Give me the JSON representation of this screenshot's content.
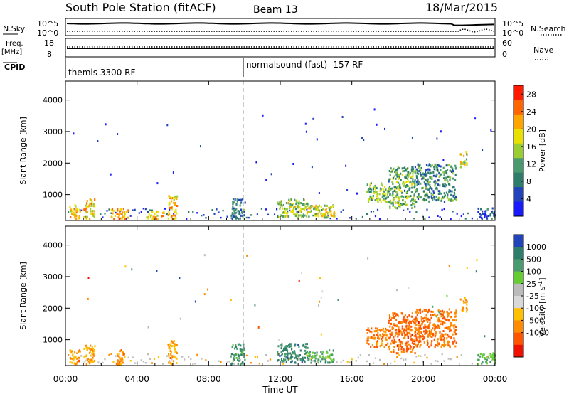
{
  "header": {
    "title": "South Pole Station (fitACF)",
    "beam": "Beam 13",
    "date": "18/Mar/2015"
  },
  "top_strips": {
    "nsky": {
      "label": "N.Sky",
      "ticks": [
        "10^5",
        "10^0"
      ],
      "right_label": "N.Search",
      "right_ticks": [
        "10^5",
        "10^0"
      ]
    },
    "freq": {
      "label_line1": "Freq.",
      "label_line2": "[MHz]",
      "ticks": [
        "18",
        "8"
      ],
      "right_label": "Nave",
      "right_ticks": [
        "60",
        "0"
      ]
    },
    "cpid": {
      "label": "CPID",
      "segments": [
        {
          "label": "themis 3300 RF",
          "start_hour": 0
        },
        {
          "label": "normalsound (fast) -157 RF",
          "start_hour": 10
        }
      ]
    }
  },
  "colors": {
    "power_scale": [
      "#1a1aff",
      "#2244bb",
      "#2e7d6b",
      "#4a9a70",
      "#9acd32",
      "#e8e000",
      "#ffa500",
      "#ff6600",
      "#ff1a00"
    ],
    "velocity_scale": [
      "#2244bb",
      "#2e7d6b",
      "#4a9a70",
      "#66cc33",
      "#bbbbbb",
      "#d8d8d8",
      "#ffc000",
      "#ff8c00",
      "#ff5500",
      "#ee1100"
    ],
    "ground_scatter": "#999999"
  },
  "chart_data": [
    {
      "type": "heatmap",
      "name": "power-panel",
      "xlabel": "",
      "ylabel": "Slant Range [km]",
      "x_ticks": [
        "00:00",
        "04:00",
        "08:00",
        "12:00",
        "16:00",
        "20:00",
        "00:00"
      ],
      "y_ticks": [
        "1000",
        "2000",
        "3000",
        "4000"
      ],
      "xlim_hours": [
        0,
        24
      ],
      "ylim_km": [
        180,
        4600
      ],
      "colorbar": {
        "label": "Power [dB]",
        "ticks": [
          "28",
          "24",
          "20",
          "16",
          "12",
          "8",
          "4"
        ],
        "range": [
          0,
          30
        ]
      },
      "regions": [
        {
          "hours": [
            0.2,
            0.8
          ],
          "km": [
            250,
            700
          ],
          "level": 0.3
        },
        {
          "hours": [
            1.0,
            1.6
          ],
          "km": [
            250,
            900
          ],
          "level": 0.35
        },
        {
          "hours": [
            2.5,
            3.5
          ],
          "km": [
            250,
            600
          ],
          "level": 0.25
        },
        {
          "hours": [
            4.5,
            5.5
          ],
          "km": [
            250,
            500
          ],
          "level": 0.3
        },
        {
          "hours": [
            5.7,
            6.2
          ],
          "km": [
            250,
            1000
          ],
          "level": 0.3
        },
        {
          "hours": [
            9.2,
            10.0
          ],
          "km": [
            250,
            900
          ],
          "level": 0.75
        },
        {
          "hours": [
            11.8,
            13.5
          ],
          "km": [
            300,
            900
          ],
          "level": 0.5
        },
        {
          "hours": [
            13.5,
            15.0
          ],
          "km": [
            300,
            700
          ],
          "level": 0.4
        },
        {
          "hours": [
            16.8,
            18.0
          ],
          "km": [
            800,
            1400
          ],
          "level": 0.55
        },
        {
          "hours": [
            18.0,
            19.5
          ],
          "km": [
            600,
            1900
          ],
          "level": 0.6
        },
        {
          "hours": [
            19.5,
            21.8
          ],
          "km": [
            800,
            2000
          ],
          "level": 0.7
        },
        {
          "hours": [
            22.0,
            22.4
          ],
          "km": [
            1900,
            2400
          ],
          "level": 0.45
        },
        {
          "hours": [
            23.0,
            24.0
          ],
          "km": [
            250,
            600
          ],
          "level": 0.85
        }
      ]
    },
    {
      "type": "heatmap",
      "name": "velocity-panel",
      "xlabel": "Time UT",
      "ylabel": "Slant Range [km]",
      "x_ticks": [
        "00:00",
        "04:00",
        "08:00",
        "12:00",
        "16:00",
        "20:00",
        "00:00"
      ],
      "y_ticks": [
        "1000",
        "2000",
        "3000",
        "4000"
      ],
      "xlim_hours": [
        0,
        24
      ],
      "ylim_km": [
        180,
        4600
      ],
      "colorbar": {
        "label": "Velocity [m s",
        "label_exp": "-1",
        "label_close": "]",
        "ticks": [
          "1000",
          "500",
          "100",
          "25",
          "-25",
          "-100",
          "-500",
          "-1000"
        ],
        "range": [
          -1000,
          1000
        ]
      },
      "regions": [
        {
          "hours": [
            0.2,
            0.8
          ],
          "km": [
            250,
            700
          ],
          "level": -0.5
        },
        {
          "hours": [
            1.0,
            1.6
          ],
          "km": [
            250,
            900
          ],
          "level": -0.4
        },
        {
          "hours": [
            2.8,
            3.3
          ],
          "km": [
            250,
            700
          ],
          "level": -0.6
        },
        {
          "hours": [
            5.7,
            6.2
          ],
          "km": [
            250,
            1000
          ],
          "level": -0.5
        },
        {
          "hours": [
            9.2,
            10.0
          ],
          "km": [
            250,
            900
          ],
          "level": 0.6
        },
        {
          "hours": [
            11.8,
            13.5
          ],
          "km": [
            300,
            900
          ],
          "level": 0.7
        },
        {
          "hours": [
            13.5,
            15.0
          ],
          "km": [
            300,
            700
          ],
          "level": 0.5
        },
        {
          "hours": [
            16.8,
            18.0
          ],
          "km": [
            800,
            1400
          ],
          "level": -0.6
        },
        {
          "hours": [
            18.0,
            19.5
          ],
          "km": [
            600,
            1900
          ],
          "level": -0.7
        },
        {
          "hours": [
            19.5,
            21.8
          ],
          "km": [
            800,
            2000
          ],
          "level": -0.65
        },
        {
          "hours": [
            22.0,
            22.4
          ],
          "km": [
            1900,
            2400
          ],
          "level": -0.5
        },
        {
          "hours": [
            23.0,
            24.0
          ],
          "km": [
            250,
            600
          ],
          "level": 0.4
        }
      ]
    }
  ]
}
